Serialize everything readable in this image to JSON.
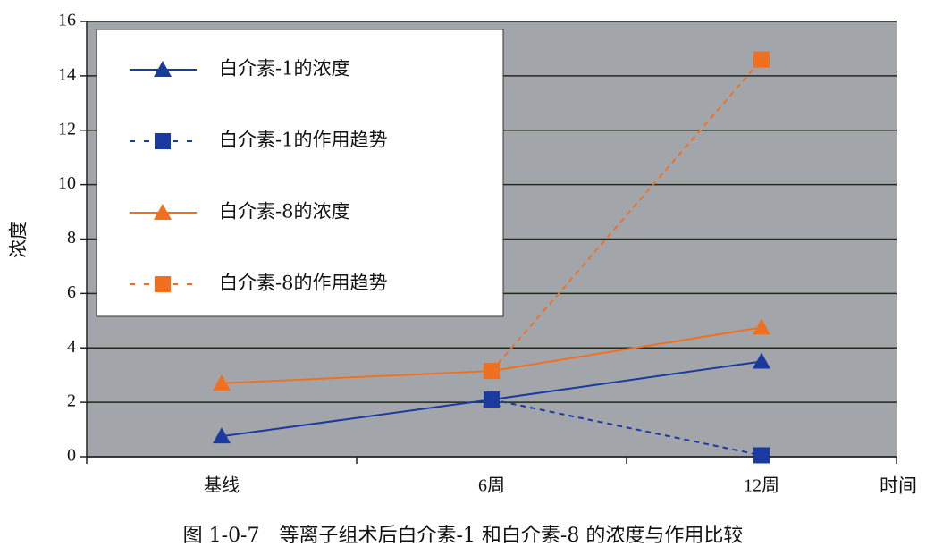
{
  "chart_data": {
    "type": "line",
    "caption": "图 1-0-7　等离子组术后白介素-1 和白介素-8 的浓度与作用比较",
    "y_label": "浓度",
    "x_label": "时间",
    "categories": [
      "基线",
      "6周",
      "12周"
    ],
    "series": [
      {
        "name": "白介素-1的浓度",
        "color": "#1a3aa0",
        "dashed": false,
        "marker": "triangle",
        "values": [
          0.75,
          2.1,
          3.5
        ]
      },
      {
        "name": "白介素-1的作用趋势",
        "color": "#1a3aa0",
        "dashed": true,
        "marker": "square",
        "values": [
          null,
          2.1,
          0.05
        ]
      },
      {
        "name": "白介素-8的浓度",
        "color": "#f07020",
        "dashed": false,
        "marker": "triangle",
        "values": [
          2.7,
          3.15,
          4.75
        ]
      },
      {
        "name": "白介素-8的作用趋势",
        "color": "#f07020",
        "dashed": true,
        "marker": "square",
        "values": [
          null,
          3.15,
          14.6
        ]
      }
    ],
    "ylim": [
      0,
      16
    ],
    "yticks": [
      0,
      2,
      4,
      6,
      8,
      10,
      12,
      14,
      16
    ],
    "grid": true
  }
}
